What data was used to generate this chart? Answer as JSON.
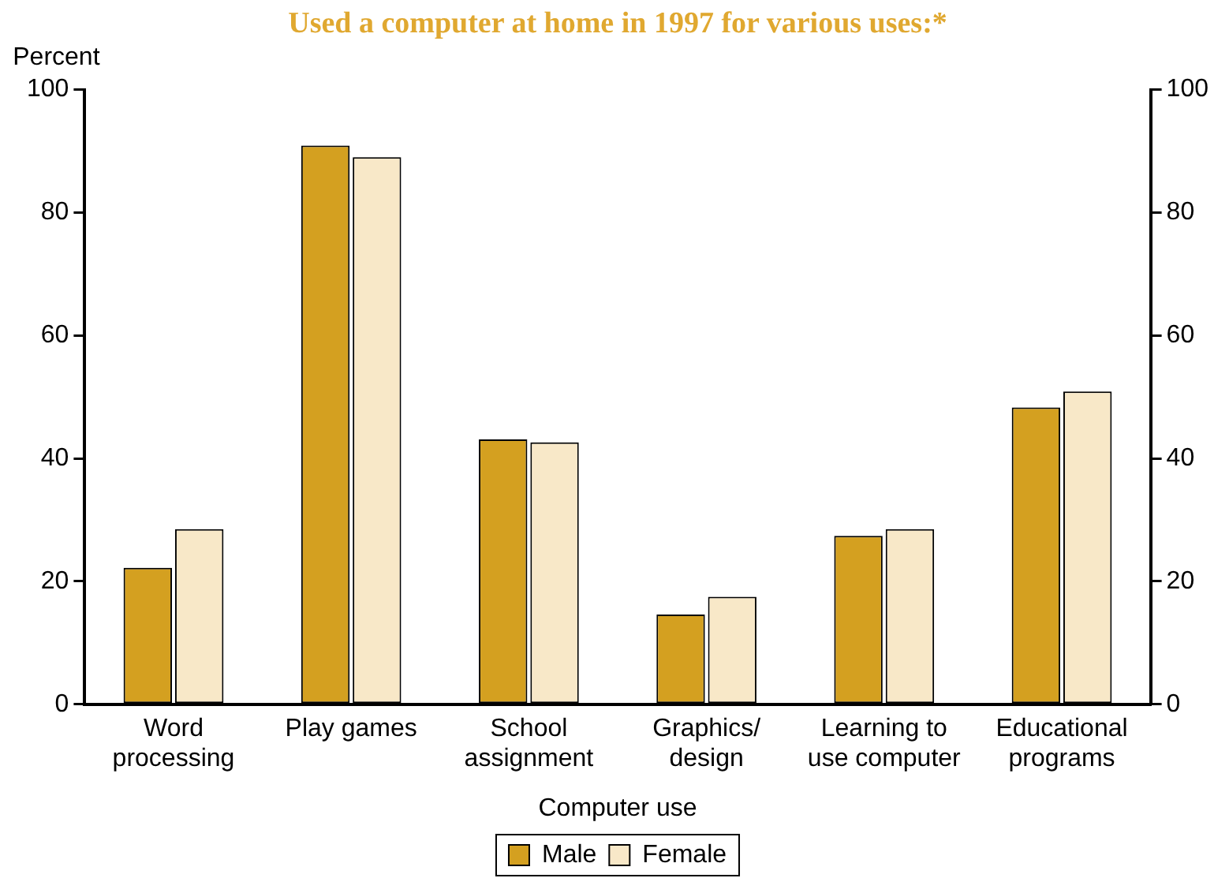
{
  "chart_data": {
    "type": "bar",
    "title": "Used a computer at home in 1997 for various uses:*",
    "xlabel": "Computer use",
    "ylabel": "Percent",
    "categories": [
      "Word processing",
      "Play games",
      "School assignment",
      "Graphics/ design",
      "Learning to use computer",
      "Educational programs"
    ],
    "series": [
      {
        "name": "Male",
        "color": "#d4a020",
        "values": [
          22.2,
          90.9,
          43.1,
          14.6,
          27.4,
          48.3
        ]
      },
      {
        "name": "Female",
        "color": "#f8e8c8",
        "values": [
          28.5,
          89.0,
          42.6,
          17.5,
          28.5,
          50.9
        ]
      }
    ],
    "ylim": [
      0,
      100
    ],
    "yticks": [
      0,
      20,
      40,
      60,
      80,
      100
    ],
    "y2lim": [
      0,
      100
    ],
    "y2ticks": [
      0,
      20,
      40,
      60,
      80,
      100
    ],
    "grid": false,
    "legend": "bottom"
  }
}
